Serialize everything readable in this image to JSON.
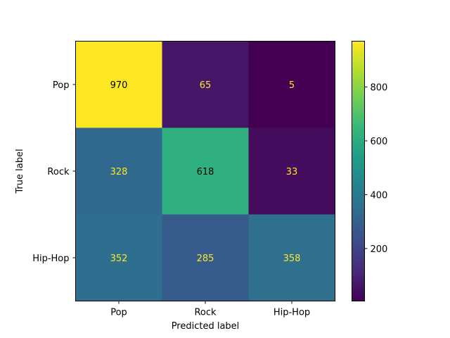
{
  "chart_data": {
    "type": "heatmap",
    "title": "",
    "xlabel": "Predicted label",
    "ylabel": "True label",
    "x_categories": [
      "Pop",
      "Rock",
      "Hip-Hop"
    ],
    "y_categories": [
      "Pop",
      "Rock",
      "Hip-Hop"
    ],
    "values": [
      [
        970,
        65,
        5
      ],
      [
        328,
        618,
        33
      ],
      [
        352,
        285,
        358
      ]
    ],
    "colormap": "viridis",
    "color_range": [
      5,
      970
    ],
    "colorbar_ticks": [
      200,
      400,
      600,
      800
    ],
    "text_colors": {
      "light": "#fde725",
      "dark": "#000000"
    }
  }
}
